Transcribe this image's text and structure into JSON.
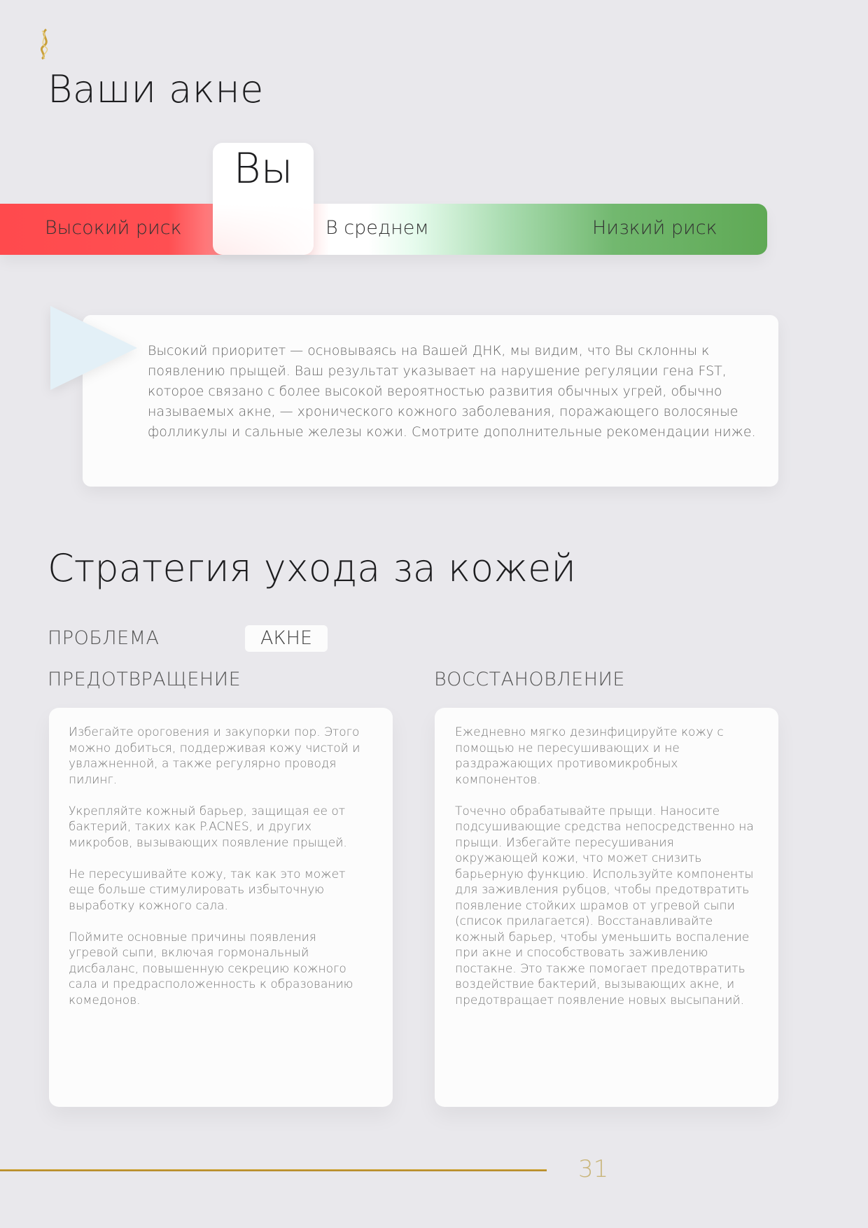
{
  "header": {
    "logo_icon": "gold-dna-helix-icon",
    "title": "Ваши акне"
  },
  "risk_scale": {
    "marker_label": "Вы",
    "labels": [
      "Высокий риск",
      "В среднем",
      "Низкий риск"
    ],
    "selected": "Высокий риск",
    "colors": {
      "high": "#ff4a4d",
      "average": "#ffffff",
      "low": "#5fa955"
    }
  },
  "summary": {
    "icon": "play-triangle-icon",
    "text": "Высокий приоритет — основываясь на Вашей ДНК, мы видим, что Вы склонны к появлению прыщей. Ваш результат указывает на нарушение регуляции гена FST, которое связано с более высокой вероятностью развития обычных угрей, обычно называемых акне, — хронического кожного заболевания, поражающего волосяные фолликулы и сальные железы кожи. Смотрите дополнительные рекомендации ниже."
  },
  "strategy": {
    "title": "Стратегия ухода за кожей",
    "problem_label": "ПРОБЛЕМА",
    "problem_value": "АКНЕ",
    "prevention": {
      "title": "ПРЕДОТВРАЩЕНИЕ",
      "paragraphs": [
        "Избегайте ороговения и закупорки пор. Этого можно добиться, поддерживая кожу чистой и увлажненной, а также регулярно проводя пилинг.",
        "Укрепляйте кожный барьер, защищая ее от бактерий, таких как P.ACNES, и других микробов, вызывающих появление прыщей.",
        "Не пересушивайте кожу, так как это может еще больше стимулировать избыточную выработку кожного сала.",
        "Поймите основные причины появления угревой сыпи, включая гормональный дисбаланс, повышенную секрецию кожного сала и предрасположенность к образованию комедонов."
      ]
    },
    "recovery": {
      "title": "ВОССТАНОВЛЕНИЕ",
      "paragraphs": [
        "Ежедневно мягко дезинфицируйте кожу с помощью не пересушивающих и не раздражающих противомикробных компонентов.",
        "Точечно обрабатывайте прыщи. Наносите подсушивающие средства непосредственно на прыщи. Избегайте пересушивания окружающей кожи, что может снизить барьерную функцию. Используйте компоненты для заживления рубцов, чтобы предотвратить появление стойких шрамов от угревой сыпи (список прилагается). Восстанавливайте кожный барьер, чтобы уменьшить воспаление при акне и способствовать заживлению постакне. Это также помогает предотвратить воздействие бактерий, вызывающих акне, и предотвращает появление новых высыпаний."
      ]
    }
  },
  "footer": {
    "page_number": "31",
    "accent": "#c9a03a"
  }
}
